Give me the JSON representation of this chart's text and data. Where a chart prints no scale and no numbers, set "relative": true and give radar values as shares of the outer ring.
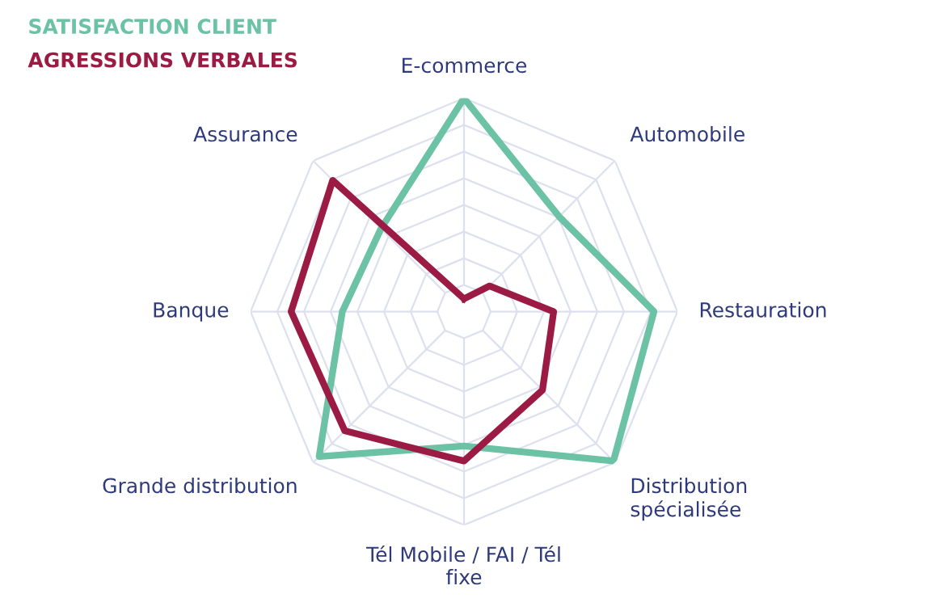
{
  "chart_data": {
    "type": "radar",
    "relative": true,
    "grid": true,
    "categories": [
      "E-commerce",
      "Automobile",
      "Restauration",
      "Distribution spécialisée",
      "Tél Mobile / FAI / Tél fixe",
      "Grande distribution",
      "Banque",
      "Assurance"
    ],
    "series": [
      {
        "name": "SATISFACTION CLIENT",
        "color": "#6cc2a4",
        "values": [
          1.0,
          0.63,
          0.89,
          0.99,
          0.63,
          0.96,
          0.57,
          0.55
        ]
      },
      {
        "name": "AGRESSIONS VERBALES",
        "color": "#9b1b45",
        "values": [
          0.06,
          0.17,
          0.42,
          0.52,
          0.7,
          0.79,
          0.81,
          0.87
        ]
      }
    ]
  }
}
